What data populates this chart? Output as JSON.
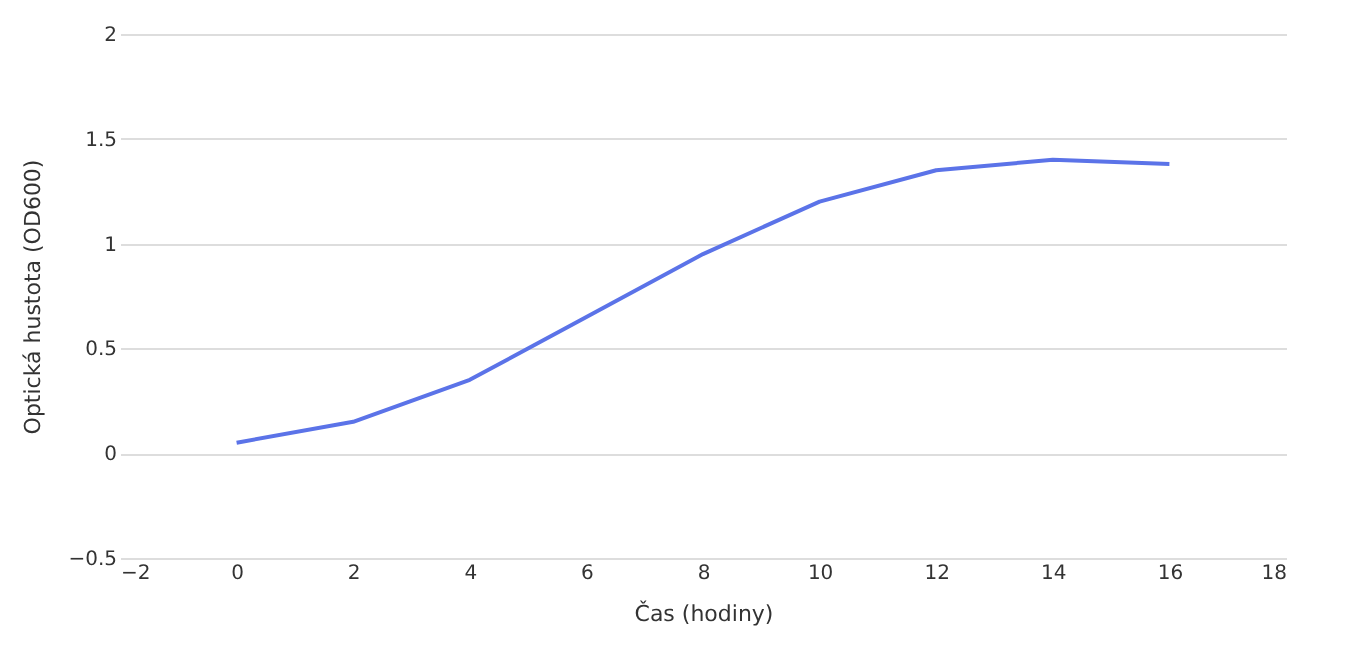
{
  "chart_data": {
    "type": "line",
    "xlabel": "Čas (hodiny)",
    "ylabel": "Optická hustota (OD600)",
    "x": [
      0,
      2,
      4,
      6,
      8,
      10,
      12,
      14,
      16
    ],
    "series": [
      {
        "color": "#5b73e8",
        "values": [
          0.05,
          0.15,
          0.35,
          0.65,
          0.95,
          1.2,
          1.35,
          1.4,
          1.38
        ]
      }
    ],
    "xlim": [
      -2,
      18
    ],
    "xticks": [
      -2,
      0,
      2,
      4,
      6,
      8,
      10,
      12,
      14,
      16,
      18
    ],
    "ylim": [
      -0.5,
      2
    ],
    "yticks": [
      {
        "value": -0.5,
        "label": "−0.5"
      },
      0,
      0.5,
      1,
      1.5,
      2
    ],
    "grid": "y",
    "marker": "none",
    "line_style": "solid"
  }
}
